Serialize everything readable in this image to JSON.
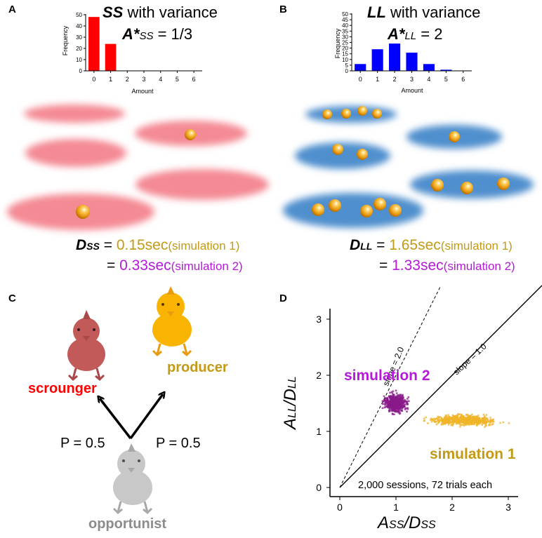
{
  "panels": {
    "a": {
      "letter": "A",
      "title_sym": "SS",
      "title_rest": " with variance",
      "astar_sym": "A*",
      "astar_sub": "SS",
      "astar_val": " = 1/3",
      "hist": {
        "ylabel": "Frequency",
        "xlabel": "Amount",
        "y_ticks": [
          "50",
          "40",
          "30",
          "20",
          "10",
          "0"
        ],
        "x_ticks": [
          "0",
          "1",
          "2",
          "3",
          "4",
          "5",
          "6"
        ],
        "color": "#ff0000"
      },
      "d_sym": "D",
      "d_sub": "SS",
      "eq": "=",
      "sim1_value": "0.15sec",
      "sim1_note": "(simulation 1)",
      "sim2_value": "0.33sec",
      "sim2_note": "(simulation 2)"
    },
    "b": {
      "letter": "B",
      "title_sym": "LL",
      "title_rest": " with variance",
      "astar_sym": "A*",
      "astar_sub": "LL",
      "astar_val": " = 2",
      "hist": {
        "ylabel": "Frequency",
        "xlabel": "Amount",
        "y_ticks": [
          "50",
          "45",
          "40",
          "35",
          "30",
          "25",
          "20",
          "15",
          "10",
          "5",
          "0"
        ],
        "x_ticks": [
          "0",
          "1",
          "2",
          "3",
          "4",
          "5",
          "6"
        ],
        "color": "#0000ff"
      },
      "d_sym": "D",
      "d_sub": "LL",
      "eq": "=",
      "sim1_value": "1.65sec",
      "sim1_note": "(simulation 1)",
      "sim2_value": "1.33sec",
      "sim2_note": "(simulation 2)"
    },
    "c": {
      "letter": "C",
      "scrounger": "scrounger",
      "producer": "producer",
      "opportunist": "opportunist",
      "p_left": "P = 0.5",
      "p_right": "P = 0.5"
    },
    "d": {
      "letter": "D",
      "ylabel_a": "A",
      "ylabel_a_sub": "LL",
      "ylabel_sep": "/",
      "ylabel_d": "D",
      "ylabel_d_sub": "LL",
      "xlabel_a": "A",
      "xlabel_a_sub": "SS",
      "xlabel_sep": "/",
      "xlabel_d": "D",
      "xlabel_d_sub": "SS",
      "slope2": "slope = 2.0",
      "slope1": "slope = 1.0",
      "sim1_label": "simulation 1",
      "sim2_label": "simulation 2",
      "note": "2,000 sessions,  72 trials each",
      "x_ticks": [
        "0",
        "1",
        "2",
        "3"
      ],
      "y_ticks": [
        "0",
        "1",
        "2",
        "3"
      ]
    }
  },
  "colors": {
    "red": "#ff0000",
    "blue": "#0000ff",
    "gold": "#c29a14",
    "purple": "#b51ad8",
    "sim1_cloud": "#f0b428",
    "sim2_cloud": "#8a1a8a"
  },
  "chart_data": [
    {
      "type": "bar",
      "title": "SS with variance",
      "xlabel": "Amount",
      "ylabel": "Frequency",
      "categories": [
        "0",
        "1",
        "2",
        "3",
        "4",
        "5",
        "6"
      ],
      "values": [
        48,
        24,
        0,
        0,
        0,
        0,
        0
      ],
      "ylim": [
        0,
        50
      ]
    },
    {
      "type": "bar",
      "title": "LL with variance",
      "xlabel": "Amount",
      "ylabel": "Frequency",
      "categories": [
        "0",
        "1",
        "2",
        "3",
        "4",
        "5",
        "6"
      ],
      "values": [
        6,
        19,
        24,
        16,
        6,
        1,
        0
      ],
      "ylim": [
        0,
        50
      ]
    },
    {
      "type": "scatter",
      "xlabel": "ASS/DSS",
      "ylabel": "ALL/DLL",
      "xlim": [
        -0.1,
        3.6
      ],
      "ylim": [
        -0.1,
        3.6
      ],
      "lines": [
        {
          "name": "slope = 1.0",
          "x": [
            0,
            3.6
          ],
          "y": [
            0,
            3.6
          ],
          "style": "solid"
        },
        {
          "name": "slope = 2.0",
          "x": [
            0,
            1.8
          ],
          "y": [
            0,
            3.6
          ],
          "style": "dashed"
        }
      ],
      "series": [
        {
          "name": "simulation 1",
          "center": [
            2.2,
            1.2
          ],
          "x_range": [
            1.3,
            3.3
          ],
          "y_range": [
            1.05,
            1.35
          ]
        },
        {
          "name": "simulation 2",
          "center": [
            1.0,
            1.5
          ],
          "x_range": [
            0.7,
            1.4
          ],
          "y_range": [
            1.25,
            1.8
          ]
        }
      ]
    }
  ]
}
